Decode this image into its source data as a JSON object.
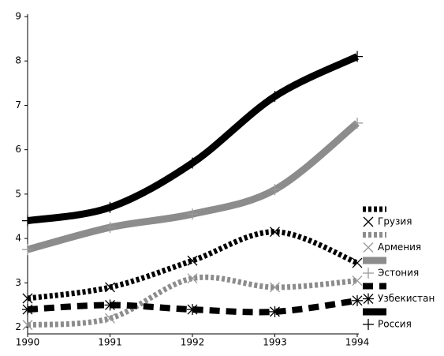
{
  "chart_data": {
    "type": "line",
    "x": [
      1990,
      1991,
      1992,
      1993,
      1994
    ],
    "xlim": [
      1990,
      1994
    ],
    "xticks": [
      1990,
      1991,
      1992,
      1993,
      1994
    ],
    "ylim": [
      1.85,
      9
    ],
    "yticks": [
      2,
      3,
      4,
      5,
      6,
      7,
      8,
      9
    ],
    "series": [
      {
        "name": "Грузия",
        "color": "#000000",
        "dash": "dotted",
        "marker": "x",
        "values": [
          2.65,
          2.9,
          3.5,
          4.15,
          3.45
        ]
      },
      {
        "name": "Армения",
        "color": "#8c8c8c",
        "dash": "dotted",
        "marker": "x",
        "values": [
          2.05,
          2.2,
          3.1,
          2.9,
          3.05
        ]
      },
      {
        "name": "Эстония",
        "color": "#8c8c8c",
        "dash": "solid",
        "marker": "plus",
        "values": [
          3.75,
          4.25,
          4.55,
          5.1,
          6.6
        ]
      },
      {
        "name": "Узбекистан",
        "color": "#000000",
        "dash": "dashed",
        "marker": "star",
        "values": [
          2.4,
          2.5,
          2.4,
          2.35,
          2.6
        ]
      },
      {
        "name": "Россия",
        "color": "#000000",
        "dash": "solid",
        "marker": "plus",
        "values": [
          4.4,
          4.7,
          5.7,
          7.2,
          8.1
        ]
      }
    ]
  }
}
